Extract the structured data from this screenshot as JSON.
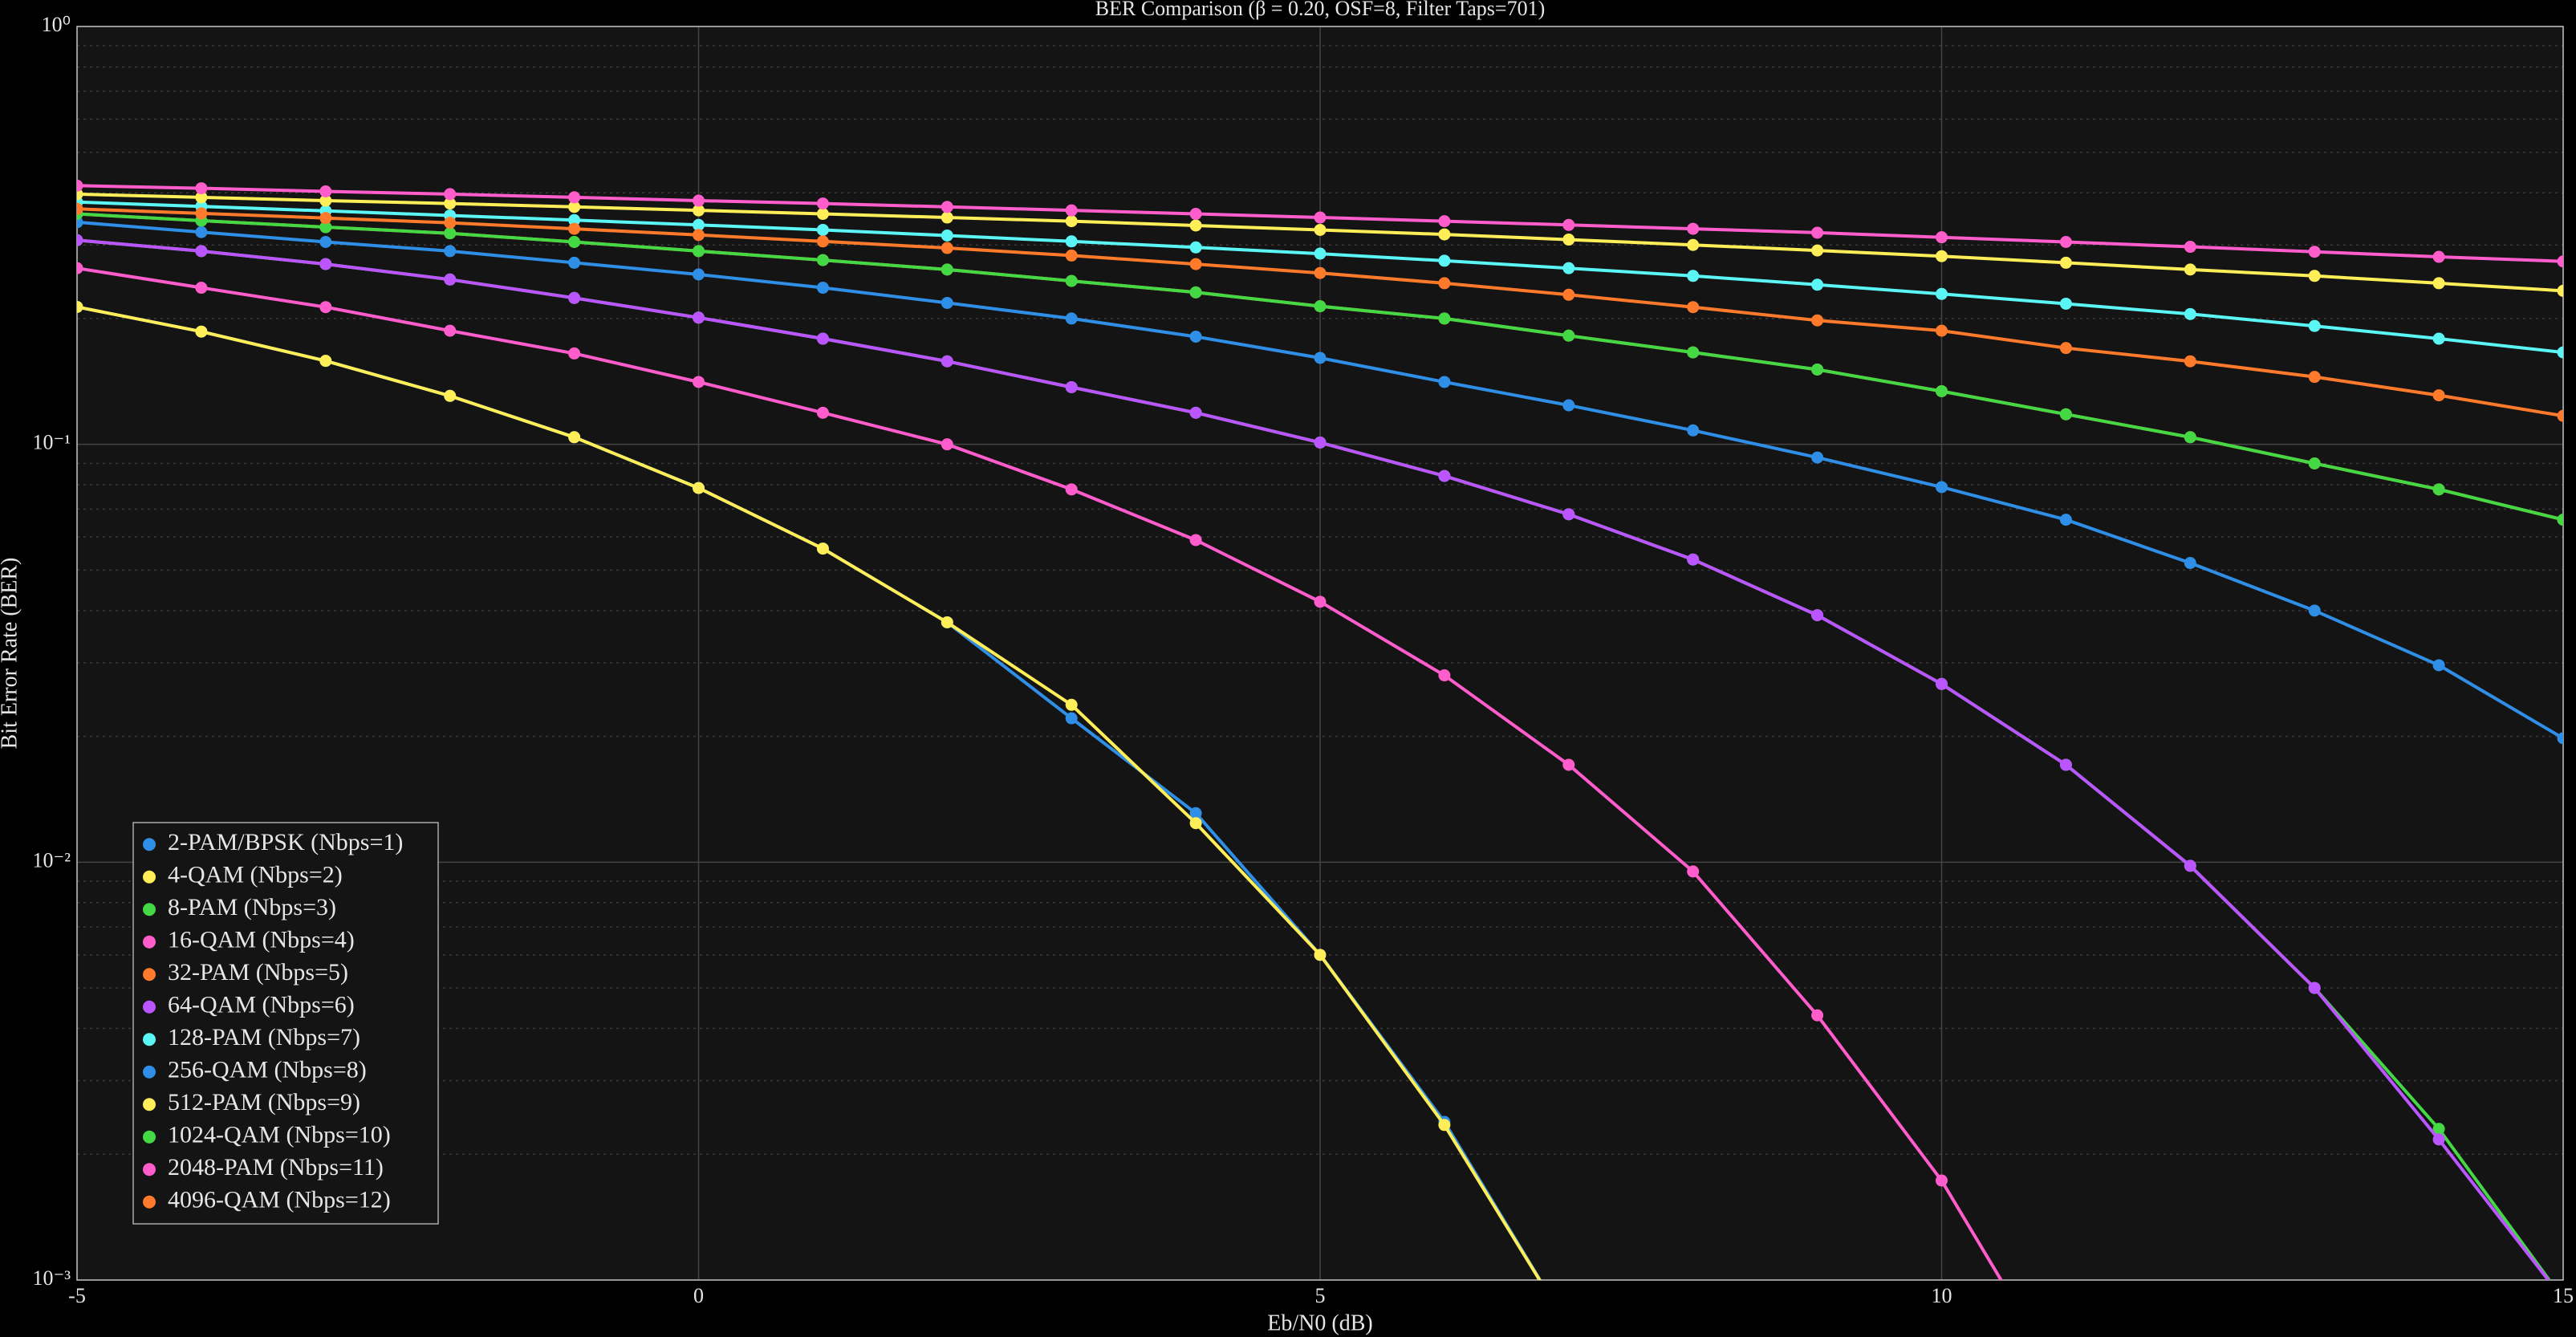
{
  "chart_data": {
    "type": "line",
    "title": "BER Comparison (β = 0.20, OSF=8, Filter Taps=701)",
    "xlabel": "Eb/N0 (dB)",
    "ylabel": "Bit Error Rate (BER)",
    "x": [
      -5,
      -4,
      -3,
      -2,
      -1,
      0,
      1,
      2,
      3,
      4,
      5,
      6,
      7,
      8,
      9,
      10,
      11,
      12,
      13,
      14,
      15
    ],
    "xlim": [
      -5,
      15
    ],
    "xticks": [
      -5,
      0,
      5,
      10,
      15
    ],
    "ylim": [
      0.001,
      1
    ],
    "yscale": "log",
    "yticks": [
      {
        "value": 1,
        "label": "10⁰"
      },
      {
        "value": 0.1,
        "label": "10⁻¹"
      },
      {
        "value": 0.01,
        "label": "10⁻²"
      },
      {
        "value": 0.001,
        "label": "10⁻³"
      }
    ],
    "minor_yticks": [
      0.002,
      0.003,
      0.004,
      0.005,
      0.006,
      0.007,
      0.008,
      0.009,
      0.02,
      0.03,
      0.04,
      0.05,
      0.06,
      0.07,
      0.08,
      0.09,
      0.2,
      0.3,
      0.4,
      0.5,
      0.6,
      0.7,
      0.8,
      0.9
    ],
    "grid": true,
    "markers": true,
    "legend": "lower left",
    "series": [
      {
        "name": "2-PAM/BPSK (Nbps=1)",
        "color": "#2f8ee6",
        "values": [
          0.2132,
          0.1861,
          0.1584,
          0.1306,
          0.104,
          0.0786,
          0.0563,
          0.0375,
          0.0221,
          0.0131,
          0.006,
          0.00239,
          0.00077,
          null,
          null,
          null,
          null,
          null,
          null,
          null,
          null
        ]
      },
      {
        "name": "4-QAM (Nbps=2)",
        "color": "#ffee58",
        "values": [
          0.2132,
          0.1861,
          0.1584,
          0.1306,
          0.104,
          0.0786,
          0.0563,
          0.0375,
          0.0238,
          0.0124,
          0.006,
          0.00235,
          0.00077,
          null,
          null,
          null,
          null,
          null,
          null,
          null,
          null
        ]
      },
      {
        "name": "8-PAM (Nbps=3)",
        "color": "#44d844",
        "values": [
          0.308,
          0.29,
          0.27,
          0.248,
          0.224,
          0.201,
          0.179,
          0.158,
          0.137,
          0.119,
          0.101,
          0.084,
          0.068,
          0.053,
          0.039,
          0.0267,
          0.0171,
          0.0098,
          0.005,
          0.0023,
          0.0009
        ]
      },
      {
        "name": "16-QAM (Nbps=4)",
        "color": "#ff5ccc",
        "values": [
          0.264,
          0.237,
          0.213,
          0.187,
          0.165,
          0.141,
          0.119,
          0.1,
          0.078,
          0.059,
          0.042,
          0.028,
          0.0171,
          0.0095,
          0.0043,
          0.00173,
          0.00055,
          null,
          null,
          null,
          null
        ]
      },
      {
        "name": "32-PAM (Nbps=5)",
        "color": "#ff7a2a",
        "values": [
          0.356,
          0.343,
          0.331,
          0.32,
          0.305,
          0.29,
          0.276,
          0.262,
          0.246,
          0.231,
          0.214,
          0.2,
          0.182,
          0.166,
          0.151,
          0.134,
          0.118,
          0.104,
          0.09,
          0.078,
          0.066
        ]
      },
      {
        "name": "64-QAM (Nbps=6)",
        "color": "#bb55ff",
        "values": [
          0.308,
          0.29,
          0.27,
          0.248,
          0.224,
          0.201,
          0.179,
          0.158,
          0.137,
          0.119,
          0.101,
          0.084,
          0.068,
          0.053,
          0.039,
          0.0267,
          0.0171,
          0.0098,
          0.005,
          0.00217,
          0.0009
        ]
      },
      {
        "name": "128-PAM (Nbps=7)",
        "color": "#5cf5f5",
        "values": [
          0.38,
          0.371,
          0.362,
          0.353,
          0.344,
          0.335,
          0.326,
          0.316,
          0.306,
          0.296,
          0.286,
          0.275,
          0.264,
          0.253,
          0.241,
          0.229,
          0.217,
          0.205,
          0.192,
          0.179,
          0.166
        ]
      },
      {
        "name": "256-QAM (Nbps=8)",
        "color": "#2f8ee6",
        "values": [
          0.34,
          0.322,
          0.305,
          0.29,
          0.272,
          0.255,
          0.237,
          0.218,
          0.2,
          0.181,
          0.161,
          0.141,
          0.124,
          0.108,
          0.093,
          0.079,
          0.066,
          0.052,
          0.04,
          0.0296,
          0.0198
        ]
      },
      {
        "name": "512-PAM (Nbps=9)",
        "color": "#ffee58",
        "values": [
          0.397,
          0.39,
          0.383,
          0.377,
          0.37,
          0.363,
          0.356,
          0.349,
          0.342,
          0.334,
          0.326,
          0.318,
          0.309,
          0.3,
          0.291,
          0.282,
          0.272,
          0.262,
          0.253,
          0.243,
          0.233
        ]
      },
      {
        "name": "1024-QAM (Nbps=10)",
        "color": "#44d844",
        "values": [
          0.356,
          0.343,
          0.331,
          0.32,
          0.305,
          0.29,
          0.276,
          0.262,
          0.246,
          0.231,
          0.214,
          0.2,
          0.182,
          0.166,
          0.151,
          0.134,
          0.118,
          0.104,
          0.09,
          0.078,
          0.066
        ]
      },
      {
        "name": "2048-PAM (Nbps=11)",
        "color": "#ff5ccc",
        "values": [
          0.416,
          0.41,
          0.403,
          0.397,
          0.39,
          0.383,
          0.377,
          0.37,
          0.363,
          0.356,
          0.349,
          0.342,
          0.335,
          0.328,
          0.321,
          0.313,
          0.305,
          0.297,
          0.289,
          0.281,
          0.274
        ]
      },
      {
        "name": "4096-QAM (Nbps=12)",
        "color": "#ff7a2a",
        "values": [
          0.366,
          0.357,
          0.348,
          0.339,
          0.328,
          0.317,
          0.306,
          0.295,
          0.283,
          0.27,
          0.257,
          0.243,
          0.228,
          0.213,
          0.198,
          0.187,
          0.17,
          0.158,
          0.145,
          0.131,
          0.117
        ]
      }
    ]
  }
}
